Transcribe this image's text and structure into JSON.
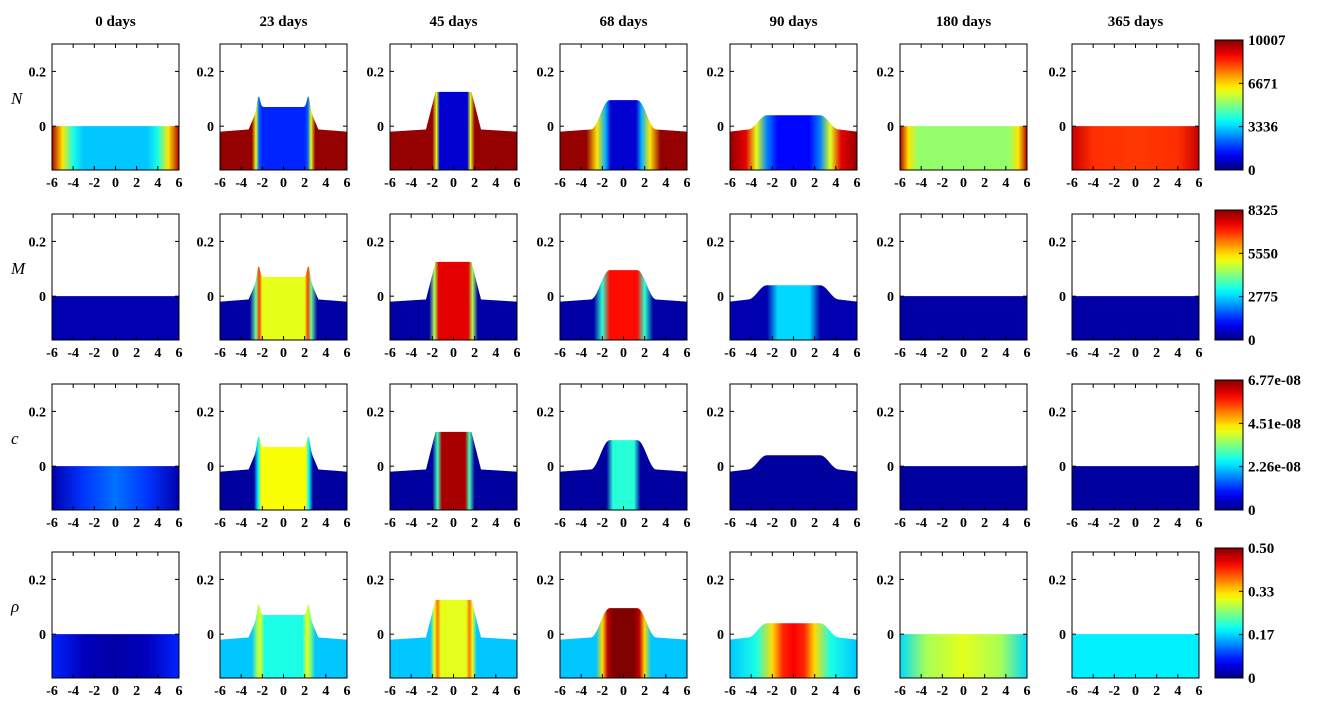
{
  "chart_data": {
    "type": "heatmap",
    "description_note": "",
    "columns": [
      "0 days",
      "23 days",
      "45 days",
      "68 days",
      "90 days",
      "180 days",
      "365 days"
    ],
    "x_ticks": [
      "-6",
      "-4",
      "-2",
      "0",
      "2",
      "4",
      "6"
    ],
    "x_range": [
      -6,
      6
    ],
    "y_ticks": [
      "0.2",
      "0"
    ],
    "y_range": [
      -0.16,
      0.3
    ],
    "rows": [
      {
        "label": "N",
        "colorbar": {
          "min": 0,
          "max": 10007,
          "ticks": [
            "10007",
            "6671",
            "3336",
            "0"
          ]
        },
        "panels": [
          {
            "profile": "flat",
            "h": 0,
            "field": [
              [
                -6,
                9500
              ],
              [
                -5,
                6500
              ],
              [
                -4,
                4000
              ],
              [
                -3,
                3200
              ],
              [
                0,
                3200
              ],
              [
                3,
                3200
              ],
              [
                4,
                4000
              ],
              [
                5,
                6500
              ],
              [
                6,
                9500
              ]
            ]
          },
          {
            "profile": "plateau",
            "h": 0.07,
            "halfwidth": 2.4,
            "shoulder": 0.11,
            "field": [
              [
                -6,
                9800
              ],
              [
                -3,
                9800
              ],
              [
                -2.6,
                6000
              ],
              [
                -2.3,
                2200
              ],
              [
                -2,
                1600
              ],
              [
                2,
                1600
              ],
              [
                2.3,
                2200
              ],
              [
                2.6,
                6000
              ],
              [
                3,
                9800
              ],
              [
                6,
                9800
              ]
            ]
          },
          {
            "profile": "plateau",
            "h": 0.125,
            "halfwidth": 1.7,
            "field": [
              [
                -6,
                9800
              ],
              [
                -2,
                9800
              ],
              [
                -1.6,
                6000
              ],
              [
                -1.3,
                800
              ],
              [
                1.3,
                800
              ],
              [
                1.6,
                6000
              ],
              [
                2,
                9800
              ],
              [
                6,
                9800
              ]
            ]
          },
          {
            "profile": "bump",
            "h": 0.095,
            "halfwidth": 1.3,
            "field": [
              [
                -6,
                9800
              ],
              [
                -3.5,
                9800
              ],
              [
                -2.5,
                6500
              ],
              [
                -1.7,
                3000
              ],
              [
                -1.2,
                800
              ],
              [
                1.2,
                800
              ],
              [
                1.7,
                3000
              ],
              [
                2.5,
                6500
              ],
              [
                3.5,
                9800
              ],
              [
                6,
                9800
              ]
            ]
          },
          {
            "profile": "bump",
            "h": 0.04,
            "halfwidth": 2.5,
            "field": [
              [
                -6,
                9800
              ],
              [
                -4.5,
                9000
              ],
              [
                -3.5,
                6000
              ],
              [
                -2.5,
                2500
              ],
              [
                -1.5,
                1300
              ],
              [
                1.5,
                1300
              ],
              [
                2.5,
                2500
              ],
              [
                3.5,
                6000
              ],
              [
                4.5,
                9000
              ],
              [
                6,
                9800
              ]
            ]
          },
          {
            "profile": "flat",
            "h": 0,
            "field": [
              [
                -6,
                9500
              ],
              [
                -5.2,
                6500
              ],
              [
                -4.3,
                5200
              ],
              [
                0,
                5200
              ],
              [
                4.3,
                5200
              ],
              [
                5.2,
                6500
              ],
              [
                6,
                9500
              ]
            ]
          },
          {
            "profile": "flat",
            "h": 0,
            "field": [
              [
                -6,
                9300
              ],
              [
                -4,
                8300
              ],
              [
                0,
                8200
              ],
              [
                4,
                8300
              ],
              [
                6,
                9300
              ]
            ]
          }
        ]
      },
      {
        "label": "M",
        "colorbar": {
          "min": 0,
          "max": 8325,
          "ticks": [
            "8325",
            "5550",
            "2775",
            "0"
          ]
        },
        "panels": [
          {
            "profile": "flat",
            "h": 0,
            "field": [
              [
                -6,
                400
              ],
              [
                6,
                400
              ]
            ]
          },
          {
            "profile": "plateau",
            "h": 0.07,
            "halfwidth": 2.4,
            "shoulder": 0.11,
            "field": [
              [
                -6,
                300
              ],
              [
                -3.2,
                300
              ],
              [
                -2.6,
                4000
              ],
              [
                -2.3,
                6800
              ],
              [
                -2,
                5000
              ],
              [
                2,
                5000
              ],
              [
                2.3,
                6800
              ],
              [
                2.6,
                4000
              ],
              [
                3.2,
                300
              ],
              [
                6,
                300
              ]
            ]
          },
          {
            "profile": "plateau",
            "h": 0.125,
            "halfwidth": 1.7,
            "field": [
              [
                -6,
                300
              ],
              [
                -2.3,
                300
              ],
              [
                -1.8,
                4500
              ],
              [
                -1.4,
                7500
              ],
              [
                1.4,
                7500
              ],
              [
                1.8,
                4500
              ],
              [
                2.3,
                300
              ],
              [
                6,
                300
              ]
            ]
          },
          {
            "profile": "bump",
            "h": 0.095,
            "halfwidth": 1.3,
            "field": [
              [
                -6,
                300
              ],
              [
                -2.8,
                300
              ],
              [
                -2,
                3500
              ],
              [
                -1.3,
                7200
              ],
              [
                1.3,
                7200
              ],
              [
                2,
                3500
              ],
              [
                2.8,
                300
              ],
              [
                6,
                300
              ]
            ]
          },
          {
            "profile": "bump",
            "h": 0.04,
            "halfwidth": 2.5,
            "field": [
              [
                -6,
                400
              ],
              [
                -2.5,
                400
              ],
              [
                -1.5,
                2800
              ],
              [
                1.5,
                2800
              ],
              [
                2.5,
                400
              ],
              [
                6,
                400
              ]
            ]
          },
          {
            "profile": "flat",
            "h": 0,
            "field": [
              [
                -6,
                300
              ],
              [
                6,
                300
              ]
            ]
          },
          {
            "profile": "flat",
            "h": 0,
            "field": [
              [
                -6,
                300
              ],
              [
                6,
                300
              ]
            ]
          }
        ]
      },
      {
        "label": "c",
        "colorbar": {
          "min": 0,
          "max": 6.77e-08,
          "ticks": [
            "6.77e-08",
            "4.51e-08",
            "2.26e-08",
            "0"
          ]
        },
        "panels": [
          {
            "profile": "flat",
            "h": 0,
            "field": [
              [
                -6,
                3e-09
              ],
              [
                -3,
                1.2e-08
              ],
              [
                0,
                1.6e-08
              ],
              [
                3,
                1.2e-08
              ],
              [
                6,
                3e-09
              ]
            ]
          },
          {
            "profile": "plateau",
            "h": 0.07,
            "halfwidth": 2.4,
            "shoulder": 0.11,
            "field": [
              [
                -6,
                2e-09
              ],
              [
                -2.8,
                2e-09
              ],
              [
                -2.4,
                2.5e-08
              ],
              [
                -2.1,
                4.2e-08
              ],
              [
                2.1,
                4.2e-08
              ],
              [
                2.4,
                2.5e-08
              ],
              [
                2.8,
                2e-09
              ],
              [
                6,
                2e-09
              ]
            ]
          },
          {
            "profile": "plateau",
            "h": 0.125,
            "halfwidth": 1.7,
            "field": [
              [
                -6,
                2e-09
              ],
              [
                -2,
                2e-09
              ],
              [
                -1.5,
                3e-08
              ],
              [
                -1.1,
                6.5e-08
              ],
              [
                1.1,
                6.5e-08
              ],
              [
                1.5,
                3e-08
              ],
              [
                2,
                2e-09
              ],
              [
                6,
                2e-09
              ]
            ]
          },
          {
            "profile": "bump",
            "h": 0.095,
            "halfwidth": 1.3,
            "field": [
              [
                -6,
                2e-09
              ],
              [
                -1.6,
                2e-09
              ],
              [
                -1,
                2.8e-08
              ],
              [
                1,
                2.8e-08
              ],
              [
                1.6,
                2e-09
              ],
              [
                6,
                2e-09
              ]
            ]
          },
          {
            "profile": "bump",
            "h": 0.04,
            "halfwidth": 2.5,
            "field": [
              [
                -6,
                2e-09
              ],
              [
                6,
                2e-09
              ]
            ]
          },
          {
            "profile": "flat",
            "h": 0,
            "field": [
              [
                -6,
                2e-09
              ],
              [
                6,
                2e-09
              ]
            ]
          },
          {
            "profile": "flat",
            "h": 0,
            "field": [
              [
                -6,
                2e-09
              ],
              [
                6,
                2e-09
              ]
            ]
          }
        ]
      },
      {
        "label": "ρ",
        "colorbar": {
          "min": 0,
          "max": 0.5,
          "ticks": [
            "0.50",
            "0.33",
            "0.17",
            "0"
          ]
        },
        "panels": [
          {
            "profile": "flat",
            "h": 0,
            "field": [
              [
                -6,
                0.08
              ],
              [
                -3,
                0.03
              ],
              [
                0,
                0.02
              ],
              [
                3,
                0.03
              ],
              [
                6,
                0.08
              ]
            ]
          },
          {
            "profile": "plateau",
            "h": 0.07,
            "halfwidth": 2.4,
            "shoulder": 0.11,
            "field": [
              [
                -6,
                0.16
              ],
              [
                -3,
                0.16
              ],
              [
                -2.5,
                0.26
              ],
              [
                -2.2,
                0.3
              ],
              [
                -1.8,
                0.2
              ],
              [
                1.8,
                0.2
              ],
              [
                2.2,
                0.3
              ],
              [
                2.5,
                0.26
              ],
              [
                3,
                0.16
              ],
              [
                6,
                0.16
              ]
            ]
          },
          {
            "profile": "plateau",
            "h": 0.125,
            "halfwidth": 1.7,
            "field": [
              [
                -6,
                0.16
              ],
              [
                -2.2,
                0.16
              ],
              [
                -1.8,
                0.3
              ],
              [
                -1.5,
                0.38
              ],
              [
                -1.2,
                0.3
              ],
              [
                1.2,
                0.3
              ],
              [
                1.5,
                0.38
              ],
              [
                1.8,
                0.3
              ],
              [
                2.2,
                0.16
              ],
              [
                6,
                0.16
              ]
            ]
          },
          {
            "profile": "bump",
            "h": 0.095,
            "halfwidth": 1.3,
            "field": [
              [
                -6,
                0.16
              ],
              [
                -2.6,
                0.16
              ],
              [
                -2,
                0.33
              ],
              [
                -1.5,
                0.47
              ],
              [
                -1,
                0.5
              ],
              [
                1,
                0.5
              ],
              [
                1.5,
                0.47
              ],
              [
                2,
                0.33
              ],
              [
                2.6,
                0.16
              ],
              [
                6,
                0.16
              ]
            ]
          },
          {
            "profile": "bump",
            "h": 0.04,
            "halfwidth": 2.5,
            "field": [
              [
                -6,
                0.16
              ],
              [
                -3.5,
                0.2
              ],
              [
                -2,
                0.33
              ],
              [
                -1,
                0.42
              ],
              [
                0,
                0.44
              ],
              [
                1,
                0.42
              ],
              [
                2,
                0.33
              ],
              [
                3.5,
                0.2
              ],
              [
                6,
                0.16
              ]
            ]
          },
          {
            "profile": "flat",
            "h": 0,
            "field": [
              [
                -6,
                0.17
              ],
              [
                -3.5,
                0.27
              ],
              [
                0,
                0.3
              ],
              [
                3.5,
                0.27
              ],
              [
                6,
                0.17
              ]
            ]
          },
          {
            "profile": "flat",
            "h": 0,
            "field": [
              [
                -6,
                0.18
              ],
              [
                6,
                0.18
              ]
            ]
          }
        ]
      }
    ],
    "colormap": "jet"
  }
}
